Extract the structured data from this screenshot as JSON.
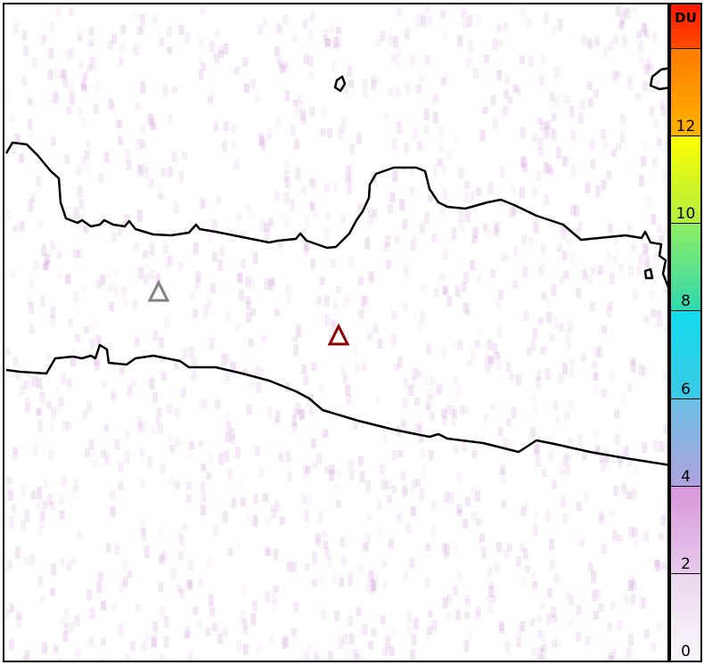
{
  "map": {
    "volcano_markers": [
      {
        "name": "inactive-volcano",
        "color": "#808080"
      },
      {
        "name": "active-volcano",
        "color": "#8b0000"
      }
    ],
    "coastline_color": "#000000",
    "background_color": "#ffffff"
  },
  "colorbar": {
    "unit": "DU",
    "range": [
      0,
      15
    ],
    "ticks": [
      {
        "value": 0,
        "label": "0"
      },
      {
        "value": 2,
        "label": "2"
      },
      {
        "value": 4,
        "label": "4"
      },
      {
        "value": 6,
        "label": "6"
      },
      {
        "value": 8,
        "label": "8"
      },
      {
        "value": 10,
        "label": "10"
      },
      {
        "value": 12,
        "label": "12"
      },
      {
        "value": 14,
        "label": ""
      }
    ],
    "bands": [
      {
        "from": 0,
        "to": 2,
        "top": "#ead6ee",
        "bottom": "#fbf6fb"
      },
      {
        "from": 2,
        "to": 4,
        "top": "#d697da",
        "bottom": "#e8c9ec"
      },
      {
        "from": 4,
        "to": 6,
        "top": "#6bbfe4",
        "bottom": "#b0a2de"
      },
      {
        "from": 6,
        "to": 8,
        "top": "#10dcec",
        "bottom": "#3cc9e6"
      },
      {
        "from": 8,
        "to": 10,
        "top": "#90ee60",
        "bottom": "#30d8b0"
      },
      {
        "from": 10,
        "to": 12,
        "top": "#ffff00",
        "bottom": "#b0ee40"
      },
      {
        "from": 12,
        "to": 14,
        "top": "#ff7a00",
        "bottom": "#ffb400"
      },
      {
        "from": 14,
        "to": 15,
        "top": "#ff1a00",
        "bottom": "#ff4a00"
      }
    ]
  }
}
